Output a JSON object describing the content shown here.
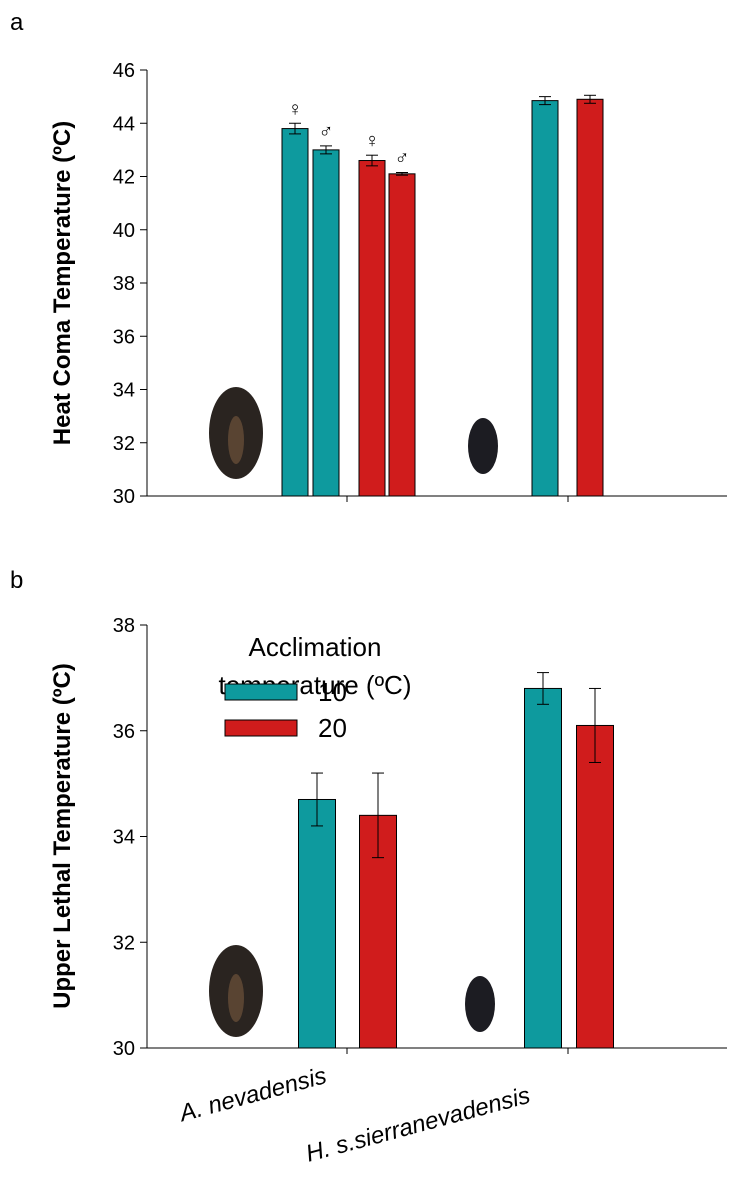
{
  "chart_data": [
    {
      "type": "bar",
      "panel": "a",
      "y_label": "Heat Coma Temperature (ºC)",
      "ylim": [
        30,
        46
      ],
      "yticks": [
        30,
        32,
        34,
        36,
        38,
        40,
        42,
        44,
        46
      ],
      "groups": [
        {
          "bars": [
            {
              "value": 43.8,
              "error": 0.2,
              "color": "#0e9a9e",
              "label": "♀"
            },
            {
              "value": 43.0,
              "error": 0.15,
              "color": "#0e9a9e",
              "label": "♂"
            },
            {
              "value": 42.6,
              "error": 0.2,
              "color": "#d01c1c",
              "label": "♀"
            },
            {
              "value": 42.1,
              "error": 0.05,
              "color": "#d01c1c",
              "label": "♂"
            }
          ]
        },
        {
          "bars": [
            {
              "value": 44.85,
              "error": 0.15,
              "color": "#0e9a9e"
            },
            {
              "value": 44.9,
              "error": 0.15,
              "color": "#d01c1c"
            }
          ]
        }
      ]
    },
    {
      "type": "bar",
      "panel": "b",
      "y_label": "Upper Lethal Temperature (ºC)",
      "ylim": [
        30,
        38
      ],
      "yticks": [
        30,
        32,
        34,
        36,
        38
      ],
      "categories": [
        "A. nevadensis",
        "H. s.sierranevadensis"
      ],
      "legend_title": [
        "Acclimation",
        "temperature (ºC)"
      ],
      "series": [
        {
          "name": "10",
          "color": "#0e9a9e",
          "values": [
            34.7,
            36.8
          ],
          "errors": [
            0.5,
            0.3
          ]
        },
        {
          "name": "20",
          "color": "#d01c1c",
          "values": [
            34.4,
            36.1
          ],
          "errors": [
            0.8,
            0.7
          ]
        }
      ]
    }
  ]
}
